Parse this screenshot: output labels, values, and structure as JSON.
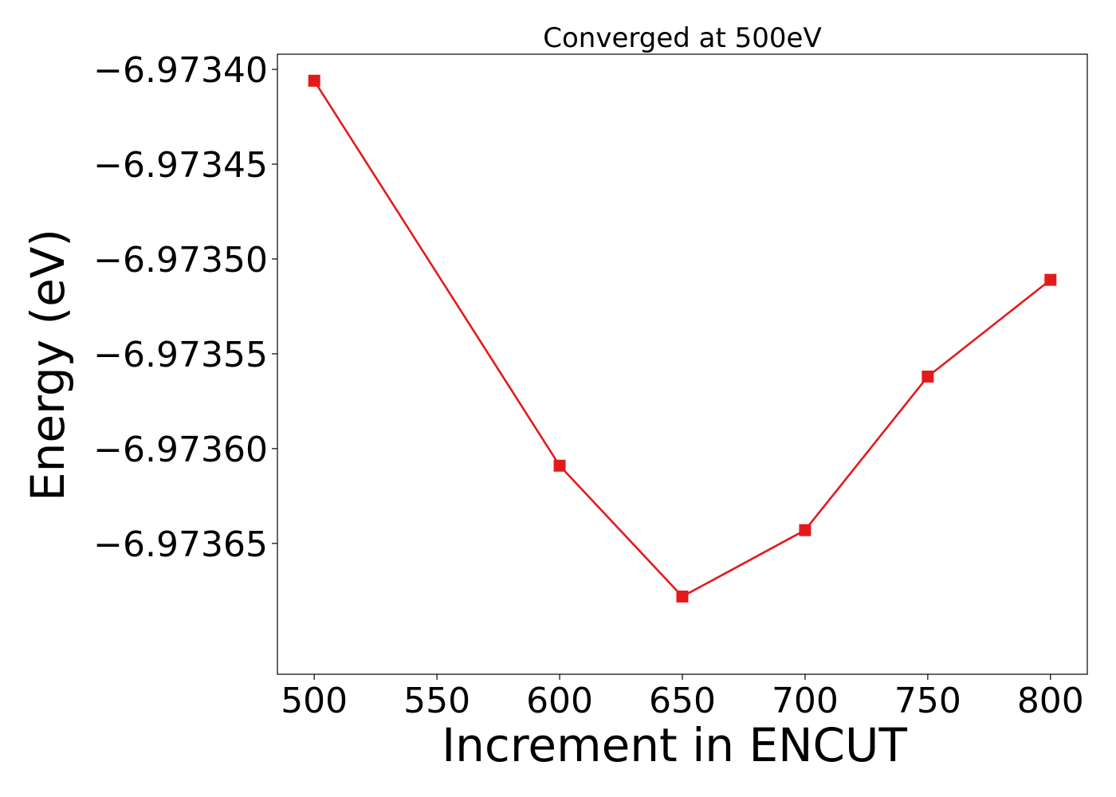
{
  "chart_data": {
    "type": "line",
    "title": "Converged at 500eV",
    "xlabel": "Increment in ENCUT",
    "ylabel": "Energy (eV)",
    "x": [
      500,
      600,
      650,
      700,
      750,
      800
    ],
    "series": [
      {
        "values": [
          -6.973406,
          -6.973609,
          -6.973678,
          -6.973643,
          -6.973562,
          -6.973511
        ],
        "color": "#e31a1c",
        "marker": "square"
      }
    ],
    "xlim": [
      485,
      815
    ],
    "ylim": [
      -6.973719,
      -6.973392
    ],
    "xticks": [
      500,
      550,
      600,
      650,
      700,
      750,
      800
    ],
    "xtick_labels": [
      "500",
      "550",
      "600",
      "650",
      "700",
      "750",
      "800"
    ],
    "yticks": [
      -6.9734,
      -6.97345,
      -6.9735,
      -6.97355,
      -6.9736,
      -6.97365
    ],
    "ytick_labels": [
      "−6.97340",
      "−6.97345",
      "−6.97350",
      "−6.97355",
      "−6.97360",
      "−6.97365"
    ],
    "grid": false,
    "legend": false
  }
}
